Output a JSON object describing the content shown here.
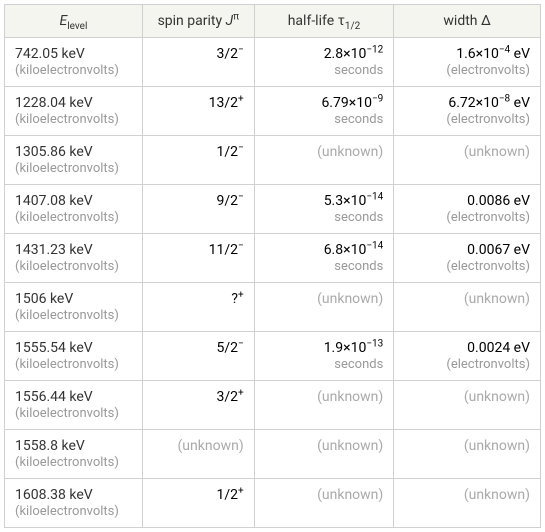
{
  "table": {
    "headers": {
      "col1_html": "<span class='italic'>E</span><sub>level</sub>",
      "col2_html": "spin parity <span class='italic'>J</span><sup>π</sup>",
      "col3_html": "half-life τ<sub>1/2</sub>",
      "col4_html": "width Δ"
    },
    "rows": [
      {
        "energy": "742.05 keV",
        "energy_unit": "(kiloelectronvolts)",
        "spin_html": "3/2<sup>−</sup>",
        "halflife_html": "2.8×10<sup>−12</sup>",
        "halflife_unit": "seconds",
        "width_html": "1.6×10<sup>−4</sup> eV",
        "width_unit": "(electronvolts)"
      },
      {
        "energy": "1228.04 keV",
        "energy_unit": "(kiloelectronvolts)",
        "spin_html": "13/2<sup>+</sup>",
        "halflife_html": "6.79×10<sup>−9</sup>",
        "halflife_unit": "seconds",
        "width_html": "6.72×10<sup>−8</sup> eV",
        "width_unit": "(electronvolts)"
      },
      {
        "energy": "1305.86 keV",
        "energy_unit": "(kiloelectronvolts)",
        "spin_html": "1/2<sup>−</sup>",
        "halflife_html": "(unknown)",
        "halflife_unit": "",
        "halflife_unknown": true,
        "width_html": "(unknown)",
        "width_unit": "",
        "width_unknown": true
      },
      {
        "energy": "1407.08 keV",
        "energy_unit": "(kiloelectronvolts)",
        "spin_html": "9/2<sup>−</sup>",
        "halflife_html": "5.3×10<sup>−14</sup>",
        "halflife_unit": "seconds",
        "width_html": "0.0086 eV",
        "width_unit": "(electronvolts)"
      },
      {
        "energy": "1431.23 keV",
        "energy_unit": "(kiloelectronvolts)",
        "spin_html": "11/2<sup>−</sup>",
        "halflife_html": "6.8×10<sup>−14</sup>",
        "halflife_unit": "seconds",
        "width_html": "0.0067 eV",
        "width_unit": "(electronvolts)"
      },
      {
        "energy": "1506 keV",
        "energy_unit": "(kiloelectronvolts)",
        "spin_html": "?<sup>+</sup>",
        "halflife_html": "(unknown)",
        "halflife_unit": "",
        "halflife_unknown": true,
        "width_html": "(unknown)",
        "width_unit": "",
        "width_unknown": true
      },
      {
        "energy": "1555.54 keV",
        "energy_unit": "(kiloelectronvolts)",
        "spin_html": "5/2<sup>−</sup>",
        "halflife_html": "1.9×10<sup>−13</sup>",
        "halflife_unit": "seconds",
        "width_html": "0.0024 eV",
        "width_unit": "(electronvolts)"
      },
      {
        "energy": "1556.44 keV",
        "energy_unit": "(kiloelectronvolts)",
        "spin_html": "3/2<sup>+</sup>",
        "halflife_html": "(unknown)",
        "halflife_unit": "",
        "halflife_unknown": true,
        "width_html": "(unknown)",
        "width_unit": "",
        "width_unknown": true
      },
      {
        "energy": "1558.8 keV",
        "energy_unit": "(kiloelectronvolts)",
        "spin_html": "(unknown)",
        "spin_unknown": true,
        "halflife_html": "(unknown)",
        "halflife_unit": "",
        "halflife_unknown": true,
        "width_html": "(unknown)",
        "width_unit": "",
        "width_unknown": true
      },
      {
        "energy": "1608.38 keV",
        "energy_unit": "(kiloelectronvolts)",
        "spin_html": "1/2<sup>+</sup>",
        "halflife_html": "(unknown)",
        "halflife_unit": "",
        "halflife_unknown": true,
        "width_html": "(unknown)",
        "width_unit": "",
        "width_unknown": true
      }
    ]
  }
}
